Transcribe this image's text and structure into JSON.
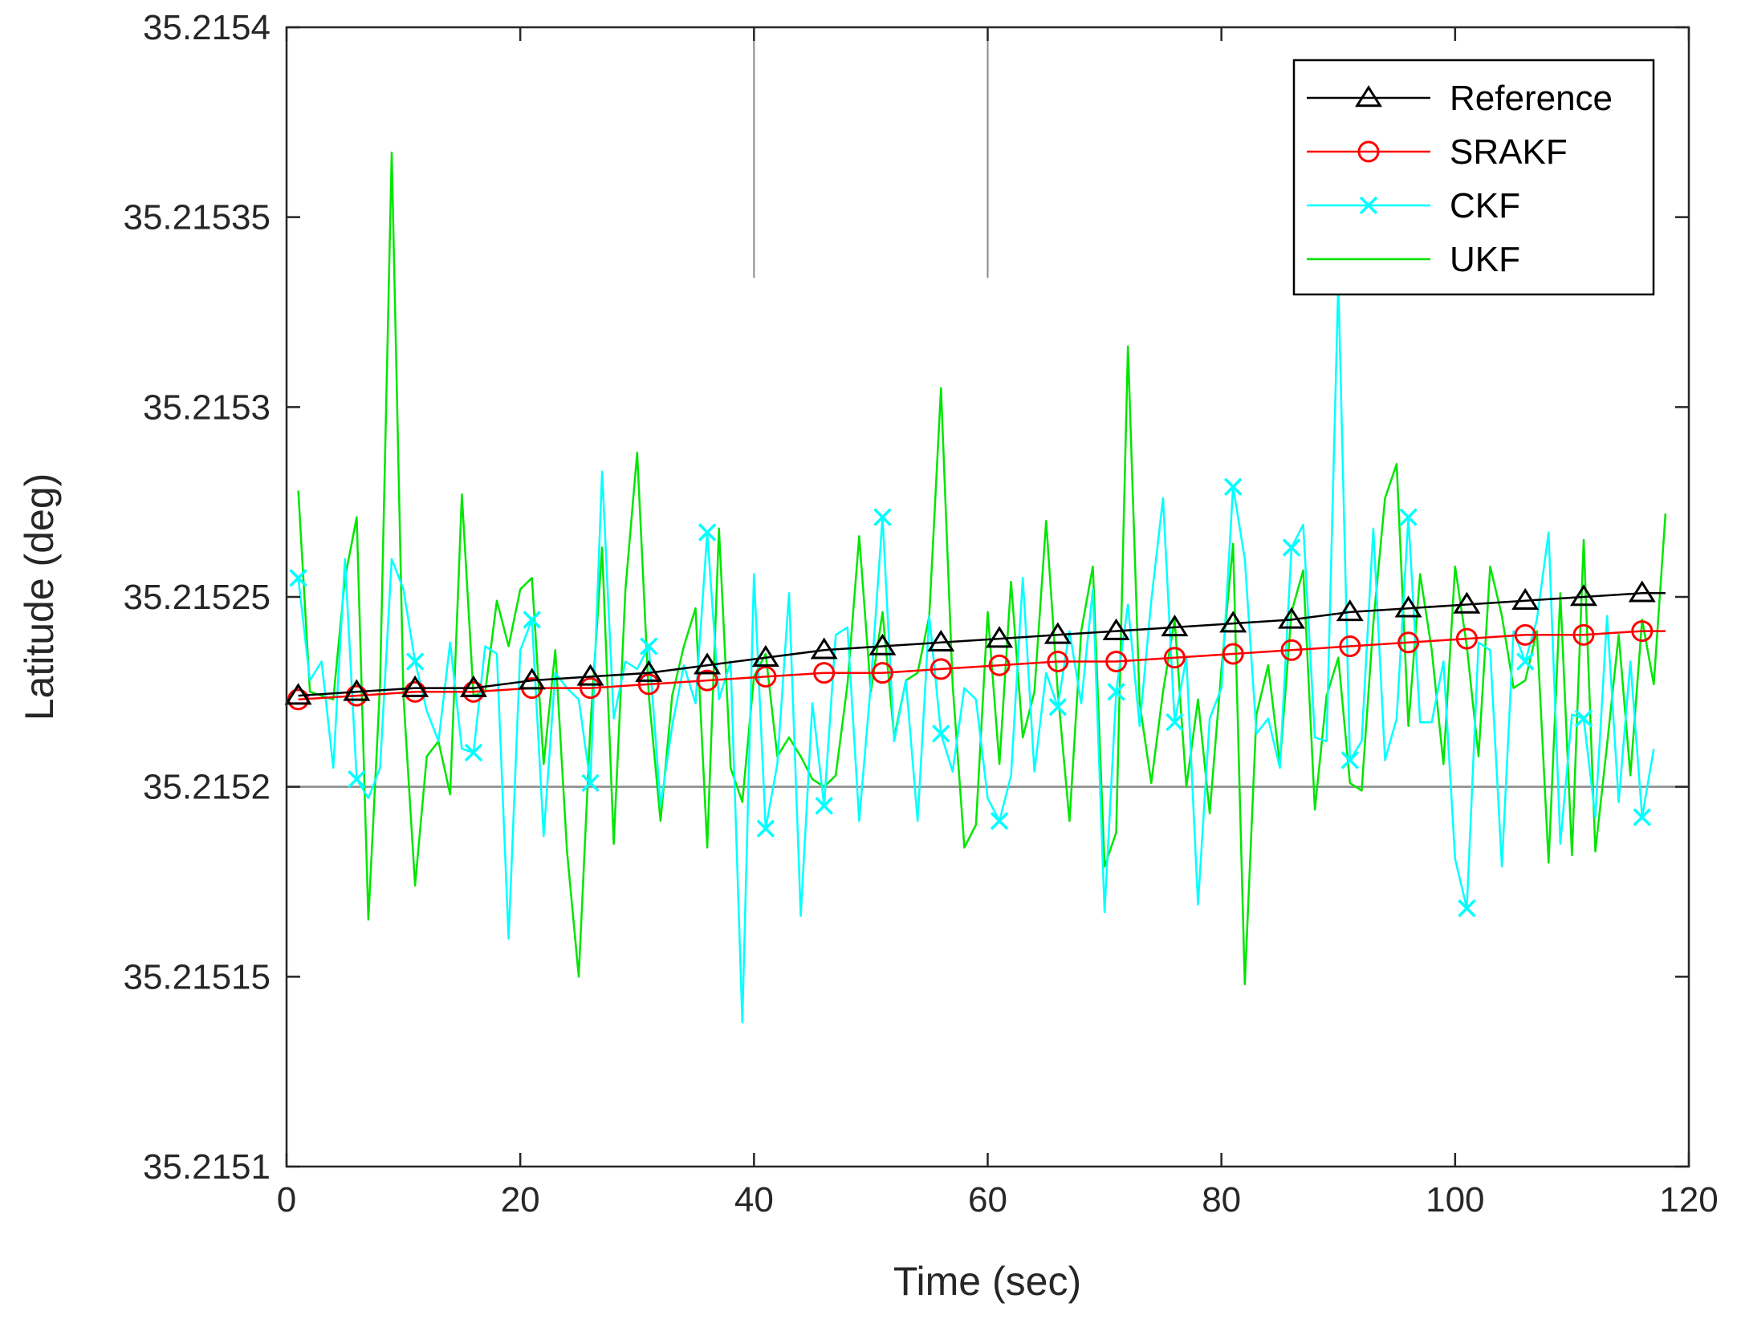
{
  "chart_data": {
    "type": "line",
    "title": "",
    "xlabel": "Time (sec)",
    "ylabel": "Latitude (deg)",
    "xlim": [
      0,
      120
    ],
    "ylim": [
      35.2151,
      35.2154
    ],
    "xticks": [
      0,
      20,
      40,
      60,
      80,
      100,
      120
    ],
    "xtick_labels": [
      "0",
      "20",
      "40",
      "60",
      "80",
      "100",
      "120"
    ],
    "yticks": [
      35.2151,
      35.21515,
      35.2152,
      35.21525,
      35.2153,
      35.21535,
      35.2154
    ],
    "ytick_labels": [
      "35.2151",
      "35.21515",
      "35.2152",
      "35.21525",
      "35.2153",
      "35.21535",
      "35.2154"
    ],
    "grid": false,
    "legend_position": "top-right",
    "reference_lines": {
      "vertical": [
        {
          "x": 40,
          "y_from": 35.215334,
          "y_to": 35.2154
        },
        {
          "x": 60,
          "y_from": 35.215334,
          "y_to": 35.2154
        }
      ],
      "horizontal": [
        {
          "y": 35.2152
        }
      ]
    },
    "series": [
      {
        "name": "Reference",
        "color": "#000000",
        "marker": "triangle",
        "marker_every": 5,
        "x": [
          1,
          6,
          11,
          16,
          21,
          26,
          31,
          36,
          41,
          46,
          51,
          56,
          61,
          66,
          71,
          76,
          81,
          86,
          91,
          96,
          101,
          106,
          111,
          116,
          118
        ],
        "values": [
          35.215224,
          35.215225,
          35.215226,
          35.215226,
          35.215228,
          35.215229,
          35.21523,
          35.215232,
          35.215234,
          35.215236,
          35.215237,
          35.215238,
          35.215239,
          35.21524,
          35.215241,
          35.215242,
          35.215243,
          35.215244,
          35.215246,
          35.215247,
          35.215248,
          35.215249,
          35.21525,
          35.215251,
          35.215251
        ]
      },
      {
        "name": "SRAKF",
        "color": "#ff0000",
        "marker": "circle",
        "marker_every": 5,
        "x": [
          1,
          6,
          11,
          16,
          21,
          26,
          31,
          36,
          41,
          46,
          51,
          56,
          61,
          66,
          71,
          76,
          81,
          86,
          91,
          96,
          101,
          106,
          111,
          116,
          118
        ],
        "values": [
          35.215223,
          35.215224,
          35.215225,
          35.215225,
          35.215226,
          35.215226,
          35.215227,
          35.215228,
          35.215229,
          35.21523,
          35.21523,
          35.215231,
          35.215232,
          35.215233,
          35.215233,
          35.215234,
          35.215235,
          35.215236,
          35.215237,
          35.215238,
          35.215239,
          35.21524,
          35.21524,
          35.215241,
          35.215241
        ]
      },
      {
        "name": "CKF",
        "color": "#00ffff",
        "marker": "x",
        "marker_every": 5,
        "x": [
          1,
          2,
          3,
          4,
          5,
          6,
          7,
          8,
          9,
          10,
          11,
          12,
          13,
          14,
          15,
          16,
          17,
          18,
          19,
          20,
          21,
          22,
          23,
          24,
          25,
          26,
          27,
          28,
          29,
          30,
          31,
          32,
          33,
          34,
          35,
          36,
          37,
          38,
          39,
          40,
          41,
          42,
          43,
          44,
          45,
          46,
          47,
          48,
          49,
          50,
          51,
          52,
          53,
          54,
          55,
          56,
          57,
          58,
          59,
          60,
          61,
          62,
          63,
          64,
          65,
          66,
          67,
          68,
          69,
          70,
          71,
          72,
          73,
          74,
          75,
          76,
          77,
          78,
          79,
          80,
          81,
          82,
          83,
          84,
          85,
          86,
          87,
          88,
          89,
          90,
          91,
          92,
          93,
          94,
          95,
          96,
          97,
          98,
          99,
          100,
          101,
          102,
          103,
          104,
          105,
          106,
          107,
          108,
          109,
          110,
          111,
          112,
          113,
          114,
          115,
          116,
          117
        ],
        "values": [
          35.215255,
          35.215228,
          35.215233,
          35.215205,
          35.21526,
          35.215202,
          35.215197,
          35.215205,
          35.21526,
          35.215252,
          35.215233,
          35.21522,
          35.215212,
          35.215238,
          35.21521,
          35.215209,
          35.215237,
          35.215235,
          35.21516,
          35.215236,
          35.215244,
          35.215187,
          35.21523,
          35.215226,
          35.215223,
          35.215201,
          35.215283,
          35.215218,
          35.215233,
          35.215231,
          35.215237,
          35.215195,
          35.215216,
          35.215232,
          35.215222,
          35.215267,
          35.215223,
          35.215233,
          35.215138,
          35.215256,
          35.215189,
          35.215206,
          35.215251,
          35.215166,
          35.215222,
          35.215195,
          35.21524,
          35.215242,
          35.215191,
          35.215227,
          35.215271,
          35.215212,
          35.215228,
          35.215191,
          35.215245,
          35.215214,
          35.215204,
          35.215226,
          35.215223,
          35.215197,
          35.215191,
          35.215203,
          35.215255,
          35.215204,
          35.21523,
          35.215221,
          35.215241,
          35.215222,
          35.215252,
          35.215167,
          35.215225,
          35.215248,
          35.215216,
          35.215249,
          35.215276,
          35.215217,
          35.215234,
          35.215169,
          35.215218,
          35.215226,
          35.215279,
          35.21526,
          35.215214,
          35.215218,
          35.215205,
          35.215263,
          35.215269,
          35.215213,
          35.215212,
          35.215333,
          35.215207,
          35.215212,
          35.215268,
          35.215207,
          35.215218,
          35.215271,
          35.215217,
          35.215217,
          35.215233,
          35.215181,
          35.215168,
          35.215238,
          35.215236,
          35.215179,
          35.215241,
          35.215233,
          35.215244,
          35.215267,
          35.215185,
          35.215219,
          35.215218,
          35.215192,
          35.215245,
          35.215196,
          35.215233,
          35.215192,
          35.21521
        ]
      },
      {
        "name": "UKF",
        "color": "#00e600",
        "marker": "none",
        "x": [
          1,
          2,
          3,
          4,
          5,
          6,
          7,
          8,
          9,
          10,
          11,
          12,
          13,
          14,
          15,
          16,
          17,
          18,
          19,
          20,
          21,
          22,
          23,
          24,
          25,
          26,
          27,
          28,
          29,
          30,
          31,
          32,
          33,
          34,
          35,
          36,
          37,
          38,
          39,
          40,
          41,
          42,
          43,
          44,
          45,
          46,
          47,
          48,
          49,
          50,
          51,
          52,
          53,
          54,
          55,
          56,
          57,
          58,
          59,
          60,
          61,
          62,
          63,
          64,
          65,
          66,
          67,
          68,
          69,
          70,
          71,
          72,
          73,
          74,
          75,
          76,
          77,
          78,
          79,
          80,
          81,
          82,
          83,
          84,
          85,
          86,
          87,
          88,
          89,
          90,
          91,
          92,
          93,
          94,
          95,
          96,
          97,
          98,
          99,
          100,
          101,
          102,
          103,
          104,
          105,
          106,
          107,
          108,
          109,
          110,
          111,
          112,
          113,
          114,
          115,
          116,
          117,
          118
        ],
        "values": [
          35.215278,
          35.215225,
          35.215224,
          35.215223,
          35.215255,
          35.215271,
          35.215165,
          35.215227,
          35.215367,
          35.215224,
          35.215174,
          35.215208,
          35.215212,
          35.215198,
          35.215277,
          35.215224,
          35.215225,
          35.215249,
          35.215237,
          35.215252,
          35.215255,
          35.215206,
          35.215236,
          35.215183,
          35.21515,
          35.215216,
          35.215263,
          35.215185,
          35.215252,
          35.215288,
          35.215224,
          35.215191,
          35.215224,
          35.215237,
          35.215247,
          35.215184,
          35.215268,
          35.215205,
          35.215196,
          35.215229,
          35.215235,
          35.215208,
          35.215213,
          35.215208,
          35.215202,
          35.2152,
          35.215203,
          35.215227,
          35.215266,
          35.215225,
          35.215246,
          35.215213,
          35.215228,
          35.21523,
          35.215245,
          35.215305,
          35.215227,
          35.215184,
          35.21519,
          35.215246,
          35.215206,
          35.215254,
          35.215213,
          35.215225,
          35.21527,
          35.215225,
          35.215191,
          35.215241,
          35.215258,
          35.215179,
          35.215188,
          35.215316,
          35.215222,
          35.215201,
          35.215225,
          35.215244,
          35.2152,
          35.215223,
          35.215193,
          35.215231,
          35.215264,
          35.215148,
          35.215219,
          35.215232,
          35.215206,
          35.215246,
          35.215257,
          35.215194,
          35.215224,
          35.215234,
          35.215201,
          35.215199,
          35.215243,
          35.215276,
          35.215285,
          35.215216,
          35.215256,
          35.215236,
          35.215206,
          35.215258,
          35.215237,
          35.215208,
          35.215258,
          35.215245,
          35.215226,
          35.215228,
          35.215241,
          35.21518,
          35.215251,
          35.215182,
          35.215265,
          35.215183,
          35.215211,
          35.21524,
          35.215203,
          35.215244,
          35.215227,
          35.215272
        ]
      }
    ]
  }
}
